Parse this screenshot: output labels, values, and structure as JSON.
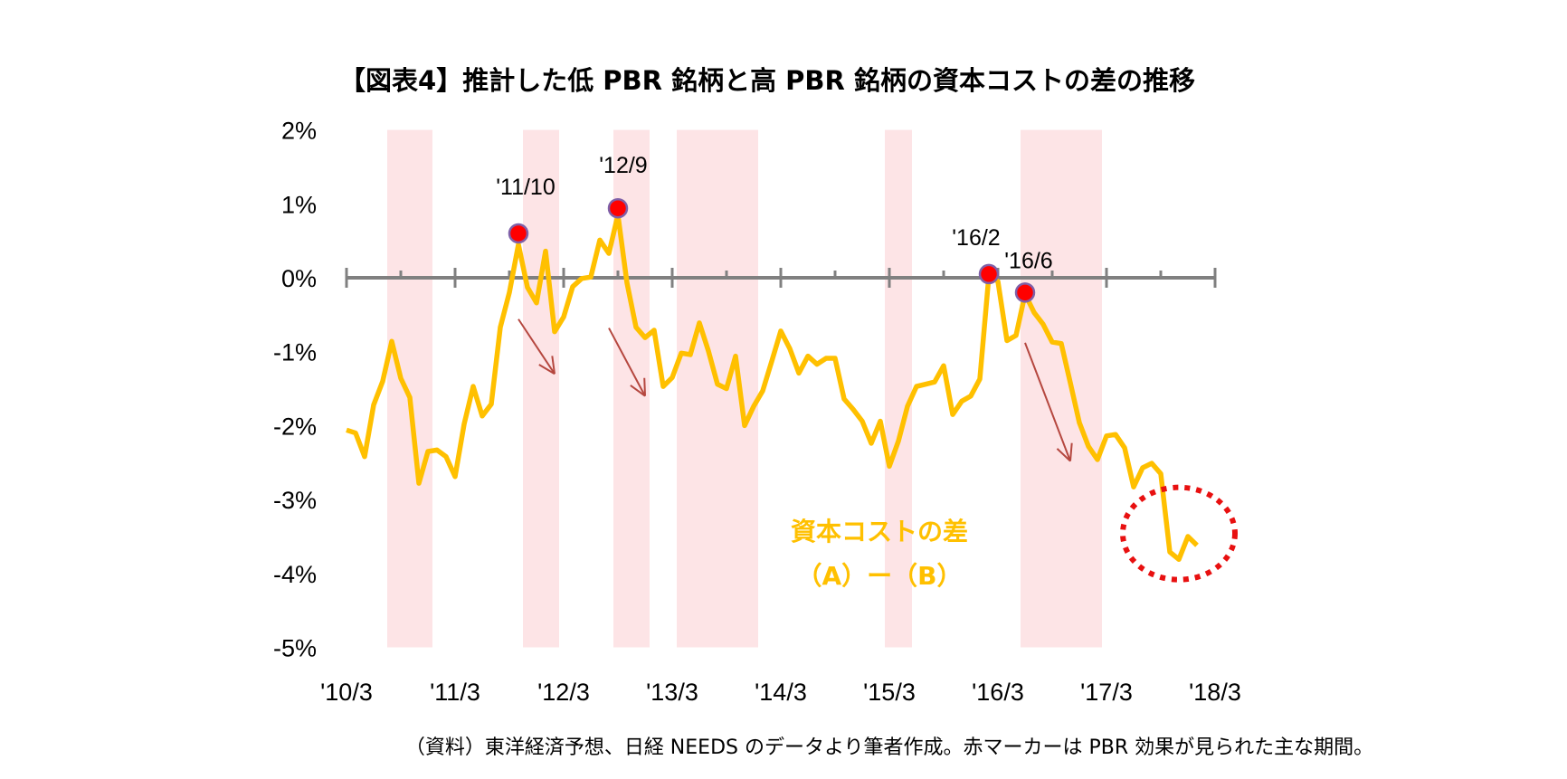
{
  "chart_data": {
    "type": "line",
    "title": "【図表4】推計した低 PBR 銘柄と高 PBR 銘柄の資本コストの差の推移",
    "xlabel": "",
    "ylabel": "",
    "ylim": [
      -5,
      2
    ],
    "y_ticks": [
      "2%",
      "1%",
      "0%",
      "-1%",
      "-2%",
      "-3%",
      "-4%",
      "-5%"
    ],
    "y_tick_values": [
      2,
      1,
      0,
      -1,
      -2,
      -3,
      -4,
      -5
    ],
    "x_ticks": [
      "'10/3",
      "'11/3",
      "'12/3",
      "'13/3",
      "'14/3",
      "'15/3",
      "'16/3",
      "'17/3",
      "'18/3"
    ],
    "x_tick_values": [
      "2010/3",
      "2011/3",
      "2012/3",
      "2013/3",
      "2014/3",
      "2015/3",
      "2016/3",
      "2017/3",
      "2018/3"
    ],
    "grid": false,
    "series": [
      {
        "name": "資本コストの差",
        "name_line2": "（A）ー（B）",
        "color": "#FFC000",
        "x": [
          "2010/3",
          "2010/4",
          "2010/5",
          "2010/6",
          "2010/7",
          "2010/8",
          "2010/9",
          "2010/10",
          "2010/11",
          "2010/12",
          "2011/1",
          "2011/2",
          "2011/3",
          "2011/4",
          "2011/5",
          "2011/6",
          "2011/7",
          "2011/8",
          "2011/9",
          "2011/10",
          "2011/11",
          "2011/12",
          "2012/1",
          "2012/2",
          "2012/3",
          "2012/4",
          "2012/5",
          "2012/6",
          "2012/7",
          "2012/8",
          "2012/9",
          "2012/10",
          "2012/11",
          "2012/12",
          "2013/1",
          "2013/2",
          "2013/3",
          "2013/4",
          "2013/5",
          "2013/6",
          "2013/7",
          "2013/8",
          "2013/9",
          "2013/10",
          "2013/11",
          "2013/12",
          "2014/1",
          "2014/2",
          "2014/3",
          "2014/4",
          "2014/5",
          "2014/6",
          "2014/7",
          "2014/8",
          "2014/9",
          "2014/10",
          "2014/11",
          "2014/12",
          "2015/1",
          "2015/2",
          "2015/3",
          "2015/4",
          "2015/5",
          "2015/6",
          "2015/7",
          "2015/8",
          "2015/9",
          "2015/10",
          "2015/11",
          "2015/12",
          "2016/1",
          "2016/2",
          "2016/3",
          "2016/4",
          "2016/5",
          "2016/6",
          "2016/7",
          "2016/8",
          "2016/9",
          "2016/10",
          "2016/11",
          "2016/12",
          "2017/1",
          "2017/2",
          "2017/3",
          "2017/4",
          "2017/5",
          "2017/6",
          "2017/7",
          "2017/8",
          "2017/9",
          "2017/10",
          "2017/11",
          "2017/12",
          "2018/1"
        ],
        "values": [
          -2.06,
          -2.1,
          -2.42,
          -1.72,
          -1.4,
          -0.86,
          -1.36,
          -1.62,
          -2.78,
          -2.35,
          -2.33,
          -2.42,
          -2.69,
          -1.98,
          -1.47,
          -1.87,
          -1.71,
          -0.67,
          -0.2,
          0.45,
          -0.13,
          -0.34,
          0.36,
          -0.73,
          -0.53,
          -0.12,
          -0.01,
          0.01,
          0.51,
          0.33,
          0.85,
          -0.07,
          -0.67,
          -0.81,
          -0.71,
          -1.47,
          -1.35,
          -1.02,
          -1.04,
          -0.61,
          -0.99,
          -1.44,
          -1.5,
          -1.06,
          -2.0,
          -1.74,
          -1.53,
          -1.13,
          -0.72,
          -0.96,
          -1.29,
          -1.06,
          -1.17,
          -1.09,
          -1.09,
          -1.64,
          -1.78,
          -1.94,
          -2.24,
          -1.94,
          -2.55,
          -2.21,
          -1.74,
          -1.47,
          -1.44,
          -1.41,
          -1.19,
          -1.85,
          -1.67,
          -1.6,
          -1.37,
          0.03,
          -0.05,
          -0.85,
          -0.78,
          -0.22,
          -0.47,
          -0.63,
          -0.87,
          -0.89,
          -1.42,
          -1.96,
          -2.28,
          -2.46,
          -2.14,
          -2.12,
          -2.3,
          -2.83,
          -2.57,
          -2.51,
          -2.65,
          -3.71,
          -3.81,
          -3.5,
          -3.62
        ]
      }
    ],
    "markers": [
      {
        "label": "'11/10",
        "x": "2011/10",
        "value": 0.6
      },
      {
        "label": "'12/9",
        "x": "2012/9",
        "value": 0.94
      },
      {
        "label": "'16/2",
        "x": "2016/2",
        "value": 0.05
      },
      {
        "label": "'16/6",
        "x": "2016/6",
        "value": -0.2
      }
    ],
    "marker_color": "#FF0000",
    "shaded_periods": [
      {
        "start": "2010/8",
        "end": "2010/12"
      },
      {
        "start": "2011/11",
        "end": "2012/2"
      },
      {
        "start": "2012/9",
        "end": "2012/12"
      },
      {
        "start": "2013/4",
        "end": "2013/12"
      },
      {
        "start": "2015/3",
        "end": "2015/5"
      },
      {
        "start": "2016/6",
        "end": "2017/2"
      }
    ],
    "shade_color": "#FDE4E6",
    "arrows": [
      {
        "from": [
          "2011/10",
          -0.56
        ],
        "to": [
          "2012/2",
          -1.3
        ]
      },
      {
        "from": [
          "2012/8",
          -0.68
        ],
        "to": [
          "2012/12",
          -1.6
        ]
      },
      {
        "from": [
          "2016/6",
          -0.88
        ],
        "to": [
          "2016/11",
          -2.48
        ]
      }
    ],
    "arrow_color": "#B5473F",
    "highlight_ellipse": {
      "center": [
        "2017/11",
        -3.46
      ],
      "color": "#E81010"
    },
    "footnote": "（資料）東洋経済予想、日経 NEEDS のデータより筆者作成。赤マーカーは PBR 効果が見られた主な期間。"
  }
}
